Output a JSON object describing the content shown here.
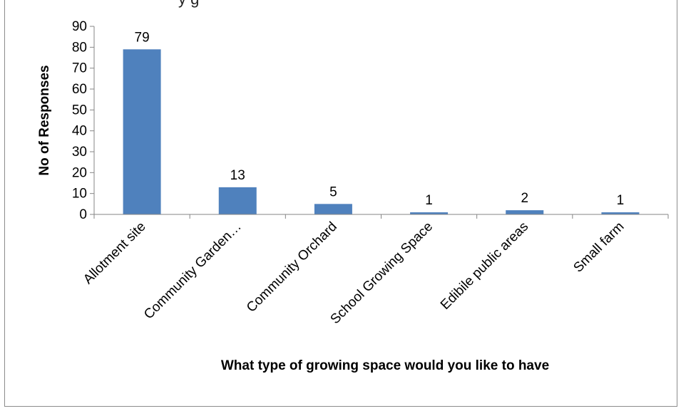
{
  "top_text": "y g",
  "chart_data": {
    "type": "bar",
    "title": "",
    "categories": [
      "Allotment site",
      "Community Garden…",
      "Community Orchard",
      "School Growing Space",
      "Edibile public areas",
      "Small farm"
    ],
    "values": [
      79,
      13,
      5,
      1,
      2,
      1
    ],
    "data_labels": [
      "79",
      "13",
      "5",
      "1",
      "2",
      "1"
    ],
    "xlabel": "What type of growing space would you like to have",
    "ylabel": "No of Responses",
    "ylim": [
      0,
      90
    ],
    "yticks": [
      "0",
      "10",
      "20",
      "30",
      "40",
      "50",
      "60",
      "70",
      "80",
      "90"
    ],
    "grid": false,
    "legend": "none",
    "bar_color": "#4f81bd",
    "axis_color": "#868686"
  }
}
